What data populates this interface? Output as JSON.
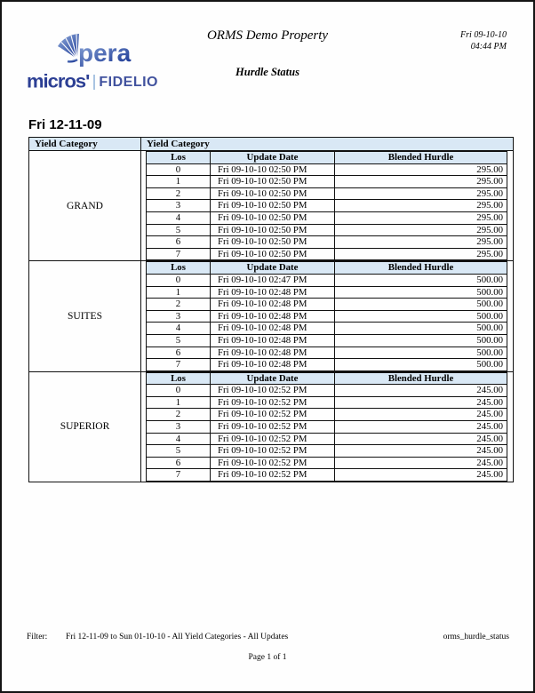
{
  "header": {
    "property_title": "ORMS Demo Property",
    "report_subtitle": "Hurdle Status",
    "print_date": "Fri 09-10-10",
    "print_time": "04:44 PM",
    "logo": {
      "opera_text": "pera",
      "micros_text": "micros'",
      "fidelio_text": "FIDELIO"
    }
  },
  "colors": {
    "table_header_fill": "#d9e8f5",
    "table_border": "#111111",
    "logo_micros_blue": "#2c3f94",
    "logo_fidelio_blue": "#41529e",
    "logo_gradient_light": "#93aedd",
    "logo_gradient_dark": "#1f3c97"
  },
  "report": {
    "date_heading": "Fri 12-11-09",
    "outer_headers": [
      "Yield Category",
      "Yield Category"
    ],
    "inner_headers": [
      "Los",
      "Update Date",
      "Blended Hurdle"
    ],
    "groups": [
      {
        "category": "GRAND",
        "rows": [
          [
            "0",
            "Fri 09-10-10 02:50 PM",
            "295.00"
          ],
          [
            "1",
            "Fri 09-10-10 02:50 PM",
            "295.00"
          ],
          [
            "2",
            "Fri 09-10-10 02:50 PM",
            "295.00"
          ],
          [
            "3",
            "Fri 09-10-10 02:50 PM",
            "295.00"
          ],
          [
            "4",
            "Fri 09-10-10 02:50 PM",
            "295.00"
          ],
          [
            "5",
            "Fri 09-10-10 02:50 PM",
            "295.00"
          ],
          [
            "6",
            "Fri 09-10-10 02:50 PM",
            "295.00"
          ],
          [
            "7",
            "Fri 09-10-10 02:50 PM",
            "295.00"
          ]
        ]
      },
      {
        "category": "SUITES",
        "rows": [
          [
            "0",
            "Fri 09-10-10 02:47 PM",
            "500.00"
          ],
          [
            "1",
            "Fri 09-10-10 02:48 PM",
            "500.00"
          ],
          [
            "2",
            "Fri 09-10-10 02:48 PM",
            "500.00"
          ],
          [
            "3",
            "Fri 09-10-10 02:48 PM",
            "500.00"
          ],
          [
            "4",
            "Fri 09-10-10 02:48 PM",
            "500.00"
          ],
          [
            "5",
            "Fri 09-10-10 02:48 PM",
            "500.00"
          ],
          [
            "6",
            "Fri 09-10-10 02:48 PM",
            "500.00"
          ],
          [
            "7",
            "Fri 09-10-10 02:48 PM",
            "500.00"
          ]
        ]
      },
      {
        "category": "SUPERIOR",
        "rows": [
          [
            "0",
            "Fri 09-10-10 02:52 PM",
            "245.00"
          ],
          [
            "1",
            "Fri 09-10-10 02:52 PM",
            "245.00"
          ],
          [
            "2",
            "Fri 09-10-10 02:52 PM",
            "245.00"
          ],
          [
            "3",
            "Fri 09-10-10 02:52 PM",
            "245.00"
          ],
          [
            "4",
            "Fri 09-10-10 02:52 PM",
            "245.00"
          ],
          [
            "5",
            "Fri 09-10-10 02:52 PM",
            "245.00"
          ],
          [
            "6",
            "Fri 09-10-10 02:52 PM",
            "245.00"
          ],
          [
            "7",
            "Fri 09-10-10 02:52 PM",
            "245.00"
          ]
        ]
      }
    ]
  },
  "footer": {
    "filter_label": "Filter:",
    "filter_value": "Fri 12-11-09 to Sun 01-10-10 - All Yield Categories - All Updates",
    "report_id": "orms_hurdle_status",
    "page_info": "Page 1 of 1"
  }
}
